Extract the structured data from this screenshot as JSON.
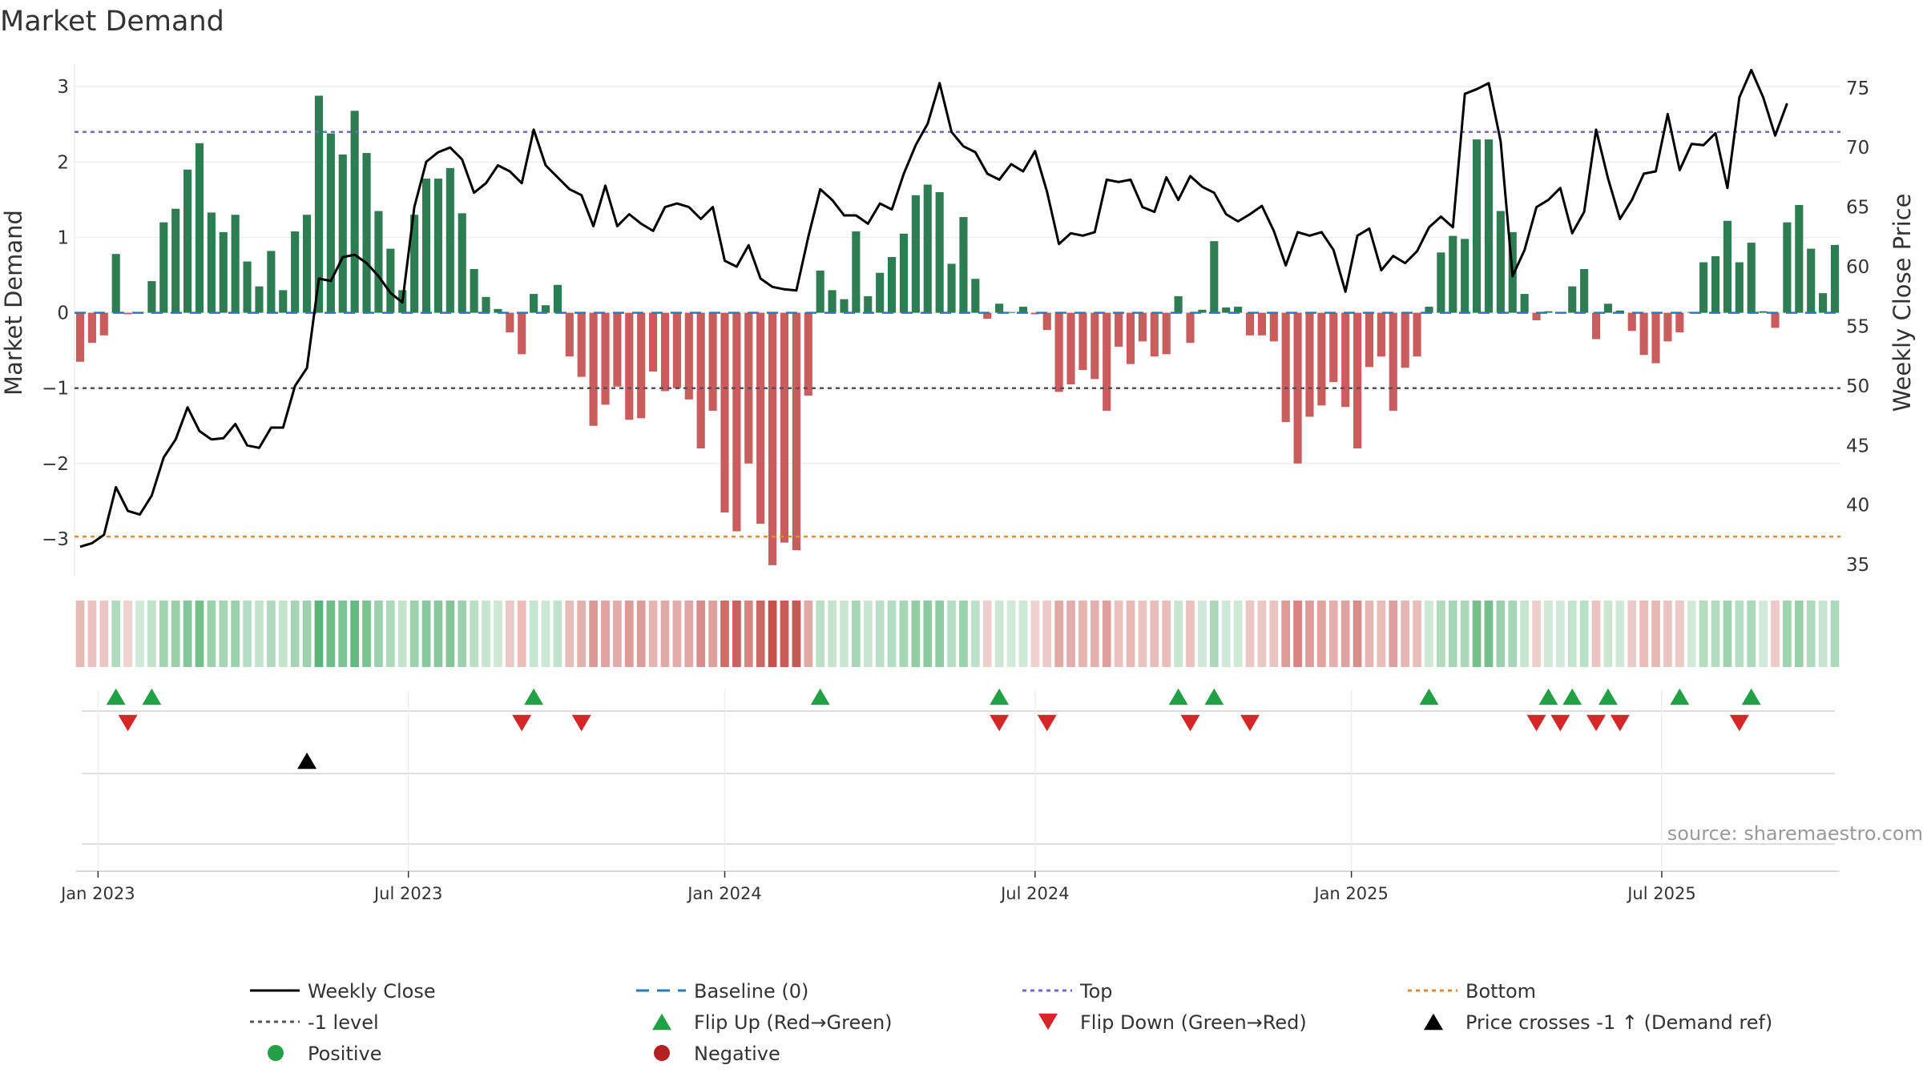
{
  "chart_data": {
    "type": "bar+line",
    "title": "Market Demand",
    "ylabel_left": "Market Demand",
    "ylabel_right": "Weekly Close Price",
    "ylim_left": [
      -3.5,
      3.3
    ],
    "ylim_right": [
      34,
      77
    ],
    "yticks_left": [
      {
        "value": 3,
        "label": "3"
      },
      {
        "value": 2,
        "label": "2"
      },
      {
        "value": 1,
        "label": "1"
      },
      {
        "value": 0,
        "label": "0"
      },
      {
        "value": -1,
        "label": "−1"
      },
      {
        "value": -2,
        "label": "−2"
      },
      {
        "value": -3,
        "label": "−3"
      }
    ],
    "yticks_right": [
      {
        "value": 75,
        "label": "75"
      },
      {
        "value": 70,
        "label": "70"
      },
      {
        "value": 65,
        "label": "65"
      },
      {
        "value": 60,
        "label": "60"
      },
      {
        "value": 55,
        "label": "55"
      },
      {
        "value": 50,
        "label": "50"
      },
      {
        "value": 45,
        "label": "45"
      },
      {
        "value": 40,
        "label": "40"
      },
      {
        "value": 35,
        "label": "35"
      }
    ],
    "x_ticks": [
      {
        "index": 1.5,
        "label": "Jan 2023"
      },
      {
        "index": 27.5,
        "label": "Jul 2023"
      },
      {
        "index": 54,
        "label": "Jan 2024"
      },
      {
        "index": 80,
        "label": "Jul 2024"
      },
      {
        "index": 106.5,
        "label": "Jan 2025"
      },
      {
        "index": 132.5,
        "label": "Jul 2025"
      }
    ],
    "top_level": 2.4,
    "bottom_level": -2.97,
    "minus_one_level": -1,
    "demand": [
      -0.65,
      -0.4,
      -0.3,
      0.78,
      -0.02,
      0.01,
      0.42,
      1.2,
      1.38,
      1.9,
      2.25,
      1.33,
      1.07,
      1.3,
      0.68,
      0.35,
      0.82,
      0.3,
      1.08,
      1.3,
      2.88,
      2.38,
      2.1,
      2.68,
      2.12,
      1.35,
      0.85,
      0.3,
      1.3,
      1.78,
      1.78,
      1.92,
      1.32,
      0.58,
      0.21,
      0.05,
      -0.26,
      -0.55,
      0.25,
      0.1,
      0.37,
      -0.58,
      -0.85,
      -1.5,
      -1.22,
      -0.98,
      -1.42,
      -1.4,
      -0.78,
      -1.04,
      -1.0,
      -1.15,
      -1.8,
      -1.3,
      -2.65,
      -2.9,
      -2.0,
      -2.8,
      -3.35,
      -3.05,
      -3.15,
      -1.1,
      0.56,
      0.3,
      0.18,
      1.08,
      0.22,
      0.53,
      0.74,
      1.05,
      1.56,
      1.7,
      1.6,
      0.65,
      1.27,
      0.45,
      -0.08,
      0.12,
      0.01,
      0.08,
      -0.02,
      -0.23,
      -1.05,
      -0.95,
      -0.76,
      -0.88,
      -1.3,
      -0.45,
      -0.68,
      -0.38,
      -0.58,
      -0.55,
      0.22,
      -0.4,
      0.04,
      0.95,
      0.07,
      0.08,
      -0.3,
      -0.3,
      -0.38,
      -1.45,
      -2.0,
      -1.38,
      -1.23,
      -0.92,
      -1.25,
      -1.8,
      -0.72,
      -0.58,
      -1.3,
      -0.73,
      -0.58,
      0.08,
      0.8,
      1.02,
      0.98,
      2.3,
      2.3,
      1.35,
      1.07,
      0.25,
      -0.1,
      0.02,
      0.01,
      0.35,
      0.58,
      -0.35,
      0.12,
      0.03,
      -0.24,
      -0.56,
      -0.67,
      -0.38,
      -0.26,
      0.01,
      0.67,
      0.75,
      1.22,
      0.67,
      0.93,
      0.02,
      -0.2,
      1.2,
      1.43,
      0.85,
      0.26,
      0.9
    ],
    "weekly_close": [
      36.5,
      36.8,
      37.5,
      41.5,
      39.5,
      39.2,
      40.8,
      44,
      45.5,
      48.2,
      46.2,
      45.5,
      45.6,
      46.8,
      45,
      44.8,
      46.5,
      46.5,
      50,
      51.5,
      59,
      58.8,
      60.8,
      61,
      60.3,
      59.2,
      57.8,
      57,
      65,
      68.8,
      69.6,
      70,
      69,
      66.2,
      67,
      68.5,
      68,
      67,
      71.5,
      68.5,
      67.5,
      66.5,
      66,
      63.4,
      66.8,
      63.4,
      64.4,
      63.6,
      63,
      65,
      65.3,
      65,
      64,
      65,
      60.5,
      60,
      61.8,
      59,
      58.3,
      58.1,
      58,
      62.5,
      66.5,
      65.6,
      64.3,
      64.3,
      63.6,
      65.3,
      64.8,
      67.8,
      70.2,
      72,
      75.4,
      71.3,
      70.1,
      69.6,
      67.8,
      67.3,
      68.6,
      68,
      69.7,
      66.3,
      61.9,
      62.8,
      62.6,
      62.9,
      67.3,
      67.1,
      67.3,
      65,
      64.6,
      67.5,
      65.6,
      67.6,
      66.7,
      66.2,
      64.4,
      63.8,
      64.4,
      65.1,
      63,
      60.1,
      62.9,
      62.6,
      62.9,
      61.4,
      57.9,
      62.6,
      63.2,
      59.7,
      60.9,
      60.3,
      61.3,
      63.3,
      64.2,
      63.3,
      74.5,
      74.9,
      75.4,
      70.5,
      59.2,
      61.4,
      65,
      65.6,
      66.6,
      62.8,
      64.6,
      71.5,
      67.4,
      64,
      65.6,
      67.8,
      68,
      72.8,
      68.1,
      70.3,
      70.2,
      71.2,
      66.6,
      74.2,
      76.5,
      74.2,
      71,
      73.7
    ],
    "series_colors": {
      "positive": "#2e7d52",
      "negative": "#c95c5c"
    },
    "heat_colors": {
      "positive": "#43a863",
      "negative": "#c24a44"
    },
    "flip_up_indices": [
      3,
      6,
      38,
      62,
      77,
      92,
      95,
      113,
      123,
      125,
      128,
      134,
      140
    ],
    "flip_down_indices": [
      4,
      37,
      42,
      77,
      81,
      93,
      98,
      122,
      124,
      127,
      129,
      139
    ],
    "price_cross_indices": [
      19
    ],
    "source": "source: sharemaestro.com",
    "legend": [
      {
        "label": "Weekly Close",
        "symbol": "line-solid",
        "color": "#000000"
      },
      {
        "label": "Baseline (0)",
        "symbol": "line-dash",
        "color": "#2a7ab5"
      },
      {
        "label": "Top",
        "symbol": "line-dot",
        "color": "#6b6bc8"
      },
      {
        "label": "Bottom",
        "symbol": "line-dot",
        "color": "#e08a2c"
      },
      {
        "label": "-1 level",
        "symbol": "line-dot",
        "color": "#555555"
      },
      {
        "label": "Flip Up (Red→Green)",
        "symbol": "triangle-up",
        "color": "#22a045"
      },
      {
        "label": "Flip Down (Green→Red)",
        "symbol": "triangle-down",
        "color": "#d62728"
      },
      {
        "label": "Price crosses -1 ↑ (Demand ref)",
        "symbol": "triangle-up",
        "color": "#000000"
      },
      {
        "label": "Positive",
        "symbol": "circle",
        "color": "#22a045"
      },
      {
        "label": "Negative",
        "symbol": "circle",
        "color": "#b22222"
      }
    ]
  }
}
